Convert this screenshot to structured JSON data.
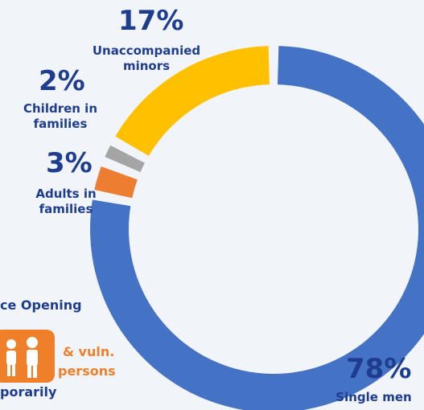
{
  "chart_data": {
    "type": "pie",
    "donut": true,
    "title": "",
    "categories": [
      "Single men",
      "Adults in families",
      "Children in families",
      "Unaccompanied minors"
    ],
    "values": [
      78,
      3,
      2,
      17
    ],
    "value_labels": [
      "78%",
      "3%",
      "2%",
      "17%"
    ],
    "colors": [
      "#4472c4",
      "#ed7d31",
      "#a5a5a5",
      "#ffc000"
    ],
    "legend": "none"
  },
  "label_lines": {
    "single_men": [
      "Single men"
    ],
    "adults": [
      "Adults in",
      "families"
    ],
    "children": [
      "Children in",
      "families"
    ],
    "minors": [
      "Unaccompanied",
      "minors"
    ]
  },
  "partial_text": {
    "opening": "ce Opening",
    "vuln_line1": "& vuln.",
    "vuln_line2": "persons",
    "temporarily": "porarily"
  },
  "icons": {
    "family": "family-icon"
  }
}
